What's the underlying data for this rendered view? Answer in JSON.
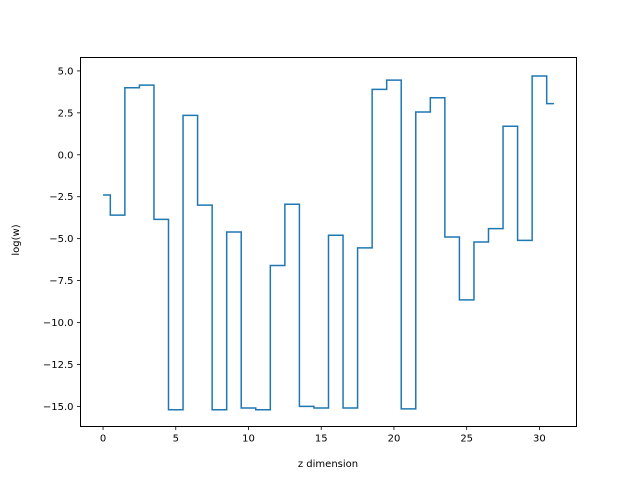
{
  "chart_data": {
    "type": "line",
    "drawstyle": "steps-mid",
    "xlabel": "z dimension",
    "ylabel": "log(w)",
    "xlim": [
      -1.55,
      32.55
    ],
    "ylim": [
      -16.2,
      5.8
    ],
    "xticks": [
      0,
      5,
      10,
      15,
      20,
      25,
      30
    ],
    "xtick_labels": [
      "0",
      "5",
      "10",
      "15",
      "20",
      "25",
      "30"
    ],
    "yticks": [
      5.0,
      2.5,
      0.0,
      -2.5,
      -5.0,
      -7.5,
      -10.0,
      -12.5,
      -15.0
    ],
    "ytick_labels": [
      "5.0",
      "2.5",
      "0.0",
      "−2.5",
      "−5.0",
      "−7.5",
      "−10.0",
      "−12.5",
      "−15.0"
    ],
    "grid": false,
    "line_color": "#1f77b4",
    "x": [
      0,
      1,
      2,
      3,
      4,
      5,
      6,
      7,
      8,
      9,
      10,
      11,
      12,
      13,
      14,
      15,
      16,
      17,
      18,
      19,
      20,
      21,
      22,
      23,
      24,
      25,
      26,
      27,
      28,
      29,
      30,
      31
    ],
    "y": [
      -2.4,
      -3.6,
      4.0,
      4.15,
      -3.85,
      -15.2,
      2.35,
      -3.0,
      -15.2,
      -4.6,
      -15.1,
      -15.2,
      -6.6,
      -2.95,
      -15.0,
      -15.1,
      -4.8,
      -15.1,
      -5.55,
      3.9,
      4.45,
      -15.15,
      2.55,
      3.4,
      -4.9,
      -8.65,
      -5.2,
      -4.4,
      1.7,
      -5.1,
      4.7,
      3.05
    ]
  }
}
